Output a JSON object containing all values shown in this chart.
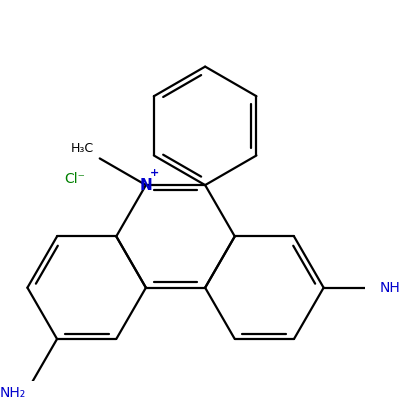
{
  "bg_color": "#ffffff",
  "bond_color": "#000000",
  "n_color": "#0000cc",
  "cl_color": "#008000",
  "nh2_color": "#0000cc",
  "line_width": 1.6,
  "dbo": 0.09,
  "figsize": [
    4.0,
    4.0
  ],
  "dpi": 100,
  "xlim": [
    -2.8,
    3.2
  ],
  "ylim": [
    -3.0,
    3.4
  ]
}
